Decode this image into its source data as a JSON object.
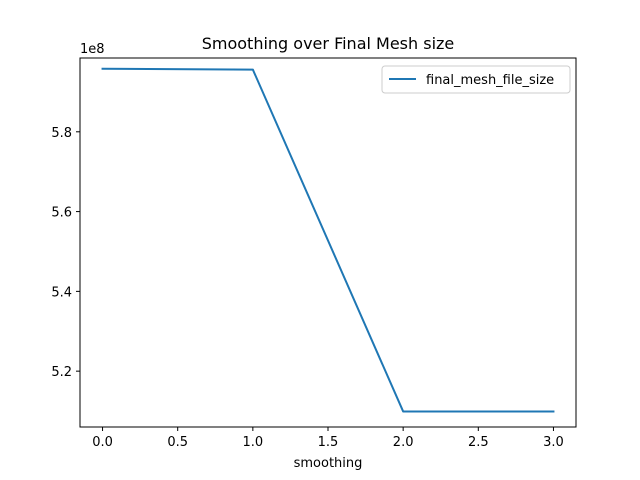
{
  "chart_data": {
    "type": "line",
    "title": "Smoothing over Final Mesh size",
    "xlabel": "smoothing",
    "ylabel": "",
    "y_offset_label": "1e8",
    "y_scale": 100000000,
    "xlim": [
      -0.15,
      3.15
    ],
    "ylim": [
      506000000,
      598500000
    ],
    "x_ticks": [
      0.0,
      0.5,
      1.0,
      1.5,
      2.0,
      2.5,
      3.0
    ],
    "x_tick_labels": [
      "0.0",
      "0.5",
      "1.0",
      "1.5",
      "2.0",
      "2.5",
      "3.0"
    ],
    "y_ticks": [
      520000000,
      540000000,
      560000000,
      580000000
    ],
    "y_tick_labels": [
      "5.2",
      "5.4",
      "5.6",
      "5.8"
    ],
    "grid": false,
    "legend_position": "top-right",
    "series": [
      {
        "name": "final_mesh_file_size",
        "color": "#1f77b4",
        "x": [
          0.0,
          1.0,
          2.0,
          3.0
        ],
        "y": [
          595800000,
          595600000,
          509900000,
          509900000
        ]
      }
    ]
  }
}
